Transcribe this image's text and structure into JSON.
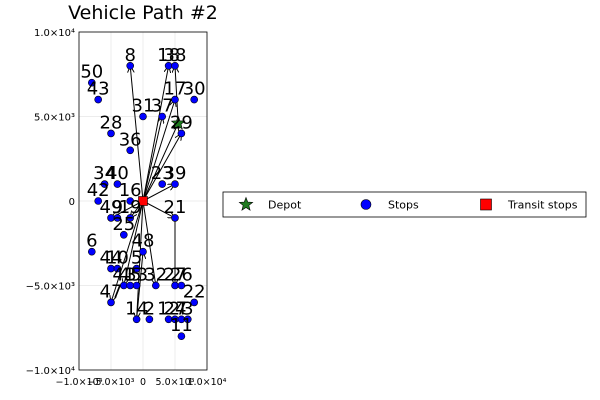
{
  "chart_data": {
    "type": "scatter",
    "title": "Vehicle Path #2",
    "xlim": [
      -10000,
      10000
    ],
    "ylim": [
      -10000,
      10000
    ],
    "x_ticks": [
      {
        "value": -10000,
        "label": "−1.0×10⁴"
      },
      {
        "value": -5000,
        "label": "−5.0×10³"
      },
      {
        "value": 0,
        "label": "0"
      },
      {
        "value": 5000,
        "label": "5.0×10³"
      },
      {
        "value": 10000,
        "label": "1.0×10⁴"
      }
    ],
    "y_ticks": [
      {
        "value": 10000,
        "label": "1.0×10⁴"
      },
      {
        "value": 5000,
        "label": "5.0×10³"
      },
      {
        "value": 0,
        "label": "0"
      },
      {
        "value": -5000,
        "label": "−5.0×10³"
      },
      {
        "value": -10000,
        "label": "−1.0×10⁴"
      }
    ],
    "grid": true,
    "legend_position": "outer-right",
    "series": [
      {
        "name": "Depot",
        "marker": "star",
        "color": "#1f7a1f",
        "points": [
          {
            "x": 5500,
            "y": 4600
          }
        ]
      },
      {
        "name": "Stops",
        "marker": "circle",
        "color": "#0000ff",
        "points": [
          {
            "label": "50",
            "x": -8000,
            "y": 7000
          },
          {
            "label": "43",
            "x": -7000,
            "y": 6000
          },
          {
            "label": "8",
            "x": -2000,
            "y": 8000
          },
          {
            "label": "18",
            "x": 4000,
            "y": 8000
          },
          {
            "label": "38",
            "x": 5000,
            "y": 8000
          },
          {
            "label": "30",
            "x": 8000,
            "y": 6000
          },
          {
            "label": "17",
            "x": 5000,
            "y": 6000
          },
          {
            "label": "31",
            "x": 0,
            "y": 5000
          },
          {
            "label": "37",
            "x": 3000,
            "y": 5000
          },
          {
            "label": "28",
            "x": -5000,
            "y": 4000
          },
          {
            "label": "29",
            "x": 6000,
            "y": 4000
          },
          {
            "label": "36",
            "x": -2000,
            "y": 3000
          },
          {
            "label": "34",
            "x": -6000,
            "y": 1000
          },
          {
            "label": "40",
            "x": -4000,
            "y": 1000
          },
          {
            "label": "23",
            "x": 3000,
            "y": 1000
          },
          {
            "label": "39",
            "x": 5000,
            "y": 1000
          },
          {
            "label": "42",
            "x": -7000,
            "y": 0
          },
          {
            "label": "16",
            "x": -2000,
            "y": 0
          },
          {
            "label": "49",
            "x": -5000,
            "y": -1000
          },
          {
            "label": "9",
            "x": -4000,
            "y": -1000
          },
          {
            "label": "19",
            "x": -2000,
            "y": -1000
          },
          {
            "label": "21",
            "x": 5000,
            "y": -1000
          },
          {
            "label": "25",
            "x": -3000,
            "y": -2000
          },
          {
            "label": "48",
            "x": 0,
            "y": -3000
          },
          {
            "label": "6",
            "x": -8000,
            "y": -3000
          },
          {
            "label": "44",
            "x": -5000,
            "y": -4000
          },
          {
            "label": "10",
            "x": -4000,
            "y": -4000
          },
          {
            "label": "5",
            "x": -1000,
            "y": -4000
          },
          {
            "label": "41",
            "x": -3000,
            "y": -5000
          },
          {
            "label": "45",
            "x": -2000,
            "y": -5000
          },
          {
            "label": "33",
            "x": -1000,
            "y": -5000
          },
          {
            "label": "32",
            "x": 2000,
            "y": -5000
          },
          {
            "label": "27",
            "x": 5000,
            "y": -5000
          },
          {
            "label": "26",
            "x": 6000,
            "y": -5000
          },
          {
            "label": "47",
            "x": -5000,
            "y": -6000
          },
          {
            "label": "22",
            "x": 8000,
            "y": -6000
          },
          {
            "label": "14",
            "x": -1000,
            "y": -7000
          },
          {
            "label": "2",
            "x": 1000,
            "y": -7000
          },
          {
            "label": "12",
            "x": 4000,
            "y": -7000
          },
          {
            "label": "24",
            "x": 5000,
            "y": -7000
          },
          {
            "label": "7",
            "x": 6000,
            "y": -7000
          },
          {
            "label": "3",
            "x": 7000,
            "y": -7000
          },
          {
            "label": "11",
            "x": 6000,
            "y": -8000
          }
        ]
      },
      {
        "name": "Transit stops",
        "marker": "square",
        "color": "#ff0000",
        "points": [
          {
            "x": 0,
            "y": 0
          }
        ]
      }
    ],
    "paths": [
      {
        "from": [
          0,
          0
        ],
        "to": [
          -2000,
          8000
        ]
      },
      {
        "from": [
          0,
          0
        ],
        "to": [
          4000,
          8000
        ]
      },
      {
        "from": [
          0,
          0
        ],
        "to": [
          5000,
          6000
        ]
      },
      {
        "from": [
          0,
          0
        ],
        "to": [
          6000,
          4000
        ]
      },
      {
        "from": [
          0,
          0
        ],
        "to": [
          3000,
          5000
        ]
      },
      {
        "from": [
          0,
          0
        ],
        "to": [
          5000,
          1000
        ]
      },
      {
        "from": [
          0,
          0
        ],
        "to": [
          5000,
          -1000
        ]
      },
      {
        "from": [
          0,
          0
        ],
        "to": [
          -1000,
          -7000
        ]
      },
      {
        "from": [
          0,
          0
        ],
        "to": [
          -5000,
          -6000
        ]
      },
      {
        "from": [
          0,
          0
        ],
        "to": [
          -5000,
          -1000
        ]
      },
      {
        "from": [
          0,
          0
        ],
        "to": [
          5500,
          4600
        ]
      },
      {
        "from": [
          0,
          0
        ],
        "to": [
          -2000,
          -1000
        ]
      },
      {
        "from": [
          0,
          0
        ],
        "to": [
          2000,
          -5000
        ]
      },
      {
        "from": [
          0,
          0
        ],
        "to": [
          -3000,
          -5000
        ]
      },
      {
        "from": [
          -1000,
          -7000
        ],
        "to": [
          0,
          -3000
        ]
      },
      {
        "from": [
          5000,
          -1000
        ],
        "to": [
          5000,
          -5000
        ]
      },
      {
        "from": [
          5500,
          4600
        ],
        "to": [
          5000,
          8000
        ]
      }
    ]
  }
}
